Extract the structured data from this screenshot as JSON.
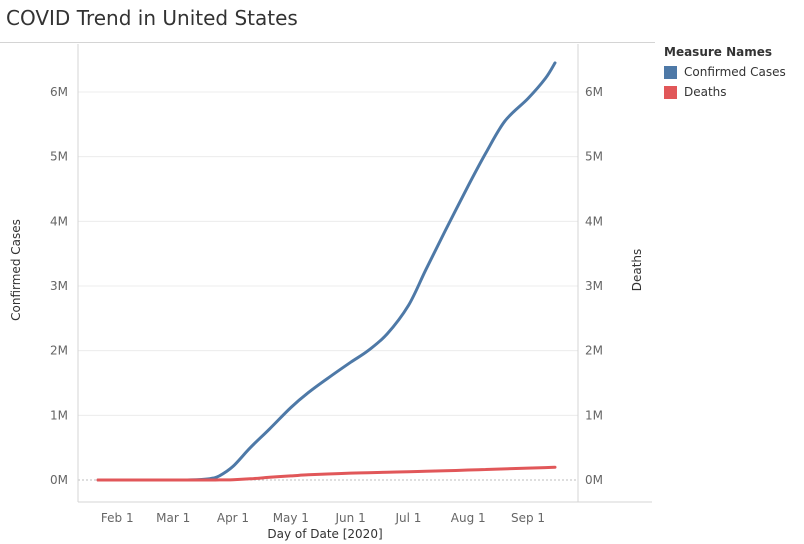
{
  "title": "COVID Trend in United States",
  "legend": {
    "title": "Measure Names",
    "items": [
      {
        "label": "Confirmed Cases",
        "color": "#4e79a7"
      },
      {
        "label": "Deaths",
        "color": "#e15759"
      }
    ]
  },
  "chart_data": {
    "type": "line",
    "title": "COVID Trend in United States",
    "xlabel": "Day of Date [2020]",
    "ylabel": "Confirmed Cases",
    "y2label": "Deaths",
    "x_ticks": [
      "Feb 1",
      "Mar 1",
      "Apr 1",
      "May 1",
      "Jun 1",
      "Jul 1",
      "Aug 1",
      "Sep 1"
    ],
    "y_ticks": [
      "0M",
      "1M",
      "2M",
      "3M",
      "4M",
      "5M",
      "6M"
    ],
    "y2_ticks": [
      "0M",
      "1M",
      "2M",
      "3M",
      "4M",
      "5M",
      "6M"
    ],
    "ylim": [
      0,
      6000000
    ],
    "x": [
      "2020-01-22",
      "2020-02-15",
      "2020-03-10",
      "2020-03-20",
      "2020-03-25",
      "2020-04-01",
      "2020-04-10",
      "2020-04-20",
      "2020-05-01",
      "2020-05-10",
      "2020-05-20",
      "2020-06-01",
      "2020-06-10",
      "2020-06-20",
      "2020-07-01",
      "2020-07-10",
      "2020-07-20",
      "2020-08-01",
      "2020-08-10",
      "2020-08-20",
      "2020-09-01",
      "2020-09-10",
      "2020-09-15"
    ],
    "series": [
      {
        "name": "Confirmed Cases",
        "color": "#4e79a7",
        "values": [
          0,
          0,
          1000,
          20000,
          65000,
          210000,
          500000,
          790000,
          1120000,
          1350000,
          1570000,
          1820000,
          2000000,
          2260000,
          2700000,
          3250000,
          3850000,
          4550000,
          5050000,
          5550000,
          5900000,
          6210000,
          6450000
        ]
      },
      {
        "name": "Deaths",
        "color": "#e15759",
        "values": [
          0,
          0,
          30,
          250,
          1000,
          5000,
          18000,
          42000,
          64000,
          80000,
          93000,
          106000,
          113000,
          119000,
          128000,
          134000,
          142000,
          154000,
          163000,
          172000,
          184000,
          192000,
          197000
        ]
      }
    ],
    "grid": true,
    "legend_position": "right"
  }
}
